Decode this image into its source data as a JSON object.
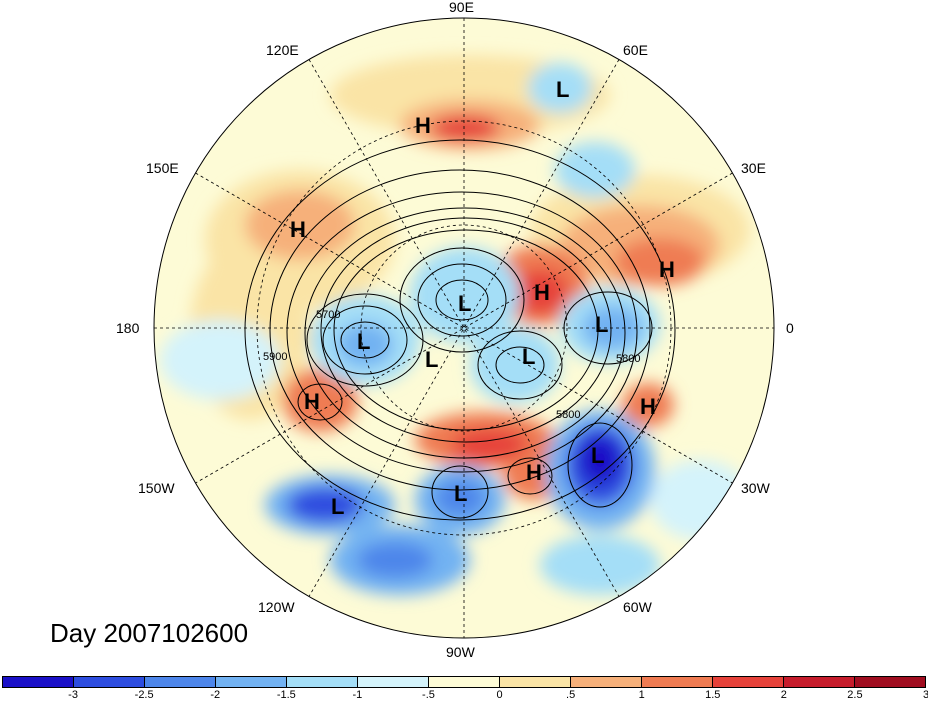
{
  "title": "Day 2007102600",
  "longitude_labels": [
    "90E",
    "60E",
    "30E",
    "0",
    "30W",
    "60W",
    "90W",
    "120W",
    "150W",
    "180",
    "150E",
    "120E"
  ],
  "contour_labels": [
    "5700",
    "5900",
    "5800",
    "5800"
  ],
  "pressure_systems": [
    {
      "type": "L"
    },
    {
      "type": "H"
    },
    {
      "type": "L"
    },
    {
      "type": "H"
    },
    {
      "type": "L"
    },
    {
      "type": "H"
    },
    {
      "type": "L"
    },
    {
      "type": "L"
    },
    {
      "type": "L"
    },
    {
      "type": "H"
    },
    {
      "type": "H"
    },
    {
      "type": "L"
    },
    {
      "type": "H"
    },
    {
      "type": "L"
    },
    {
      "type": "L"
    },
    {
      "type": "H"
    }
  ],
  "colorbar": {
    "colors": [
      "#1a10c8",
      "#2d4de0",
      "#4d86ea",
      "#72b2f2",
      "#a4def7",
      "#d4f3fb",
      "#fdfbd6",
      "#fae4a6",
      "#f6b07a",
      "#ef7b52",
      "#e6423a",
      "#c61c2c",
      "#a00d20"
    ],
    "ticks": [
      "-3",
      "-2.5",
      "-2",
      "-1.5",
      "-1",
      "-.5",
      "0",
      ".5",
      "1",
      "1.5",
      "2",
      "2.5",
      "3"
    ]
  }
}
